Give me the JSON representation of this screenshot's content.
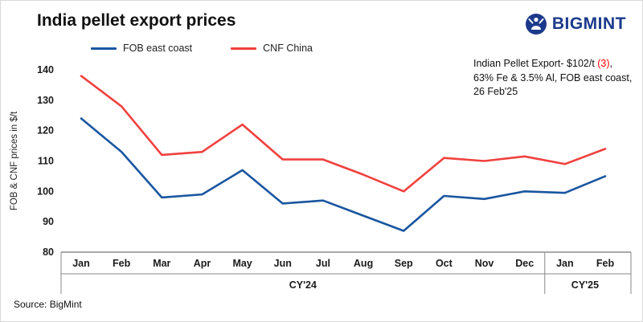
{
  "header": {
    "title": "India pellet export prices",
    "brand": "BIGMINT"
  },
  "annotation": {
    "line1_prefix": "Indian Pellet Export- $102/t ",
    "line1_highlight": "(3)",
    "line1_suffix": ",",
    "line2": "63% Fe & 3.5% Al, FOB east coast,",
    "line3": "26 Feb'25",
    "highlight_color": "#ff0000"
  },
  "source": "Source: BigMint",
  "colors": {
    "fob_blue": "#1a56a0",
    "cnf_red": "#f0413e",
    "brand_navy": "#1b3a8c",
    "axis": "#333333"
  },
  "chart_data": {
    "type": "line",
    "categories": [
      "Jan",
      "Feb",
      "Mar",
      "Apr",
      "May",
      "Jun",
      "Jul",
      "Aug",
      "Sep",
      "Oct",
      "Nov",
      "Dec",
      "Jan",
      "Feb"
    ],
    "group_labels": [
      {
        "label": "CY'24",
        "span": 12
      },
      {
        "label": "CY'25",
        "span": 2
      }
    ],
    "series": [
      {
        "name": "FOB east coast",
        "color": "#1a56a0",
        "values": [
          124,
          113,
          98,
          99,
          107,
          96,
          97,
          92,
          87,
          98.5,
          97.5,
          100,
          99.5,
          105
        ]
      },
      {
        "name": "CNF China",
        "color": "#f0413e",
        "values": [
          138,
          128,
          112,
          113,
          122,
          110.5,
          110.5,
          105.5,
          100,
          111,
          110,
          111.5,
          109,
          114
        ]
      }
    ],
    "ylabel": "FOB & CNF prices in $/t",
    "ylim": [
      80,
      140
    ],
    "ytick_step": 10,
    "grid": false,
    "legend_position": "top"
  }
}
